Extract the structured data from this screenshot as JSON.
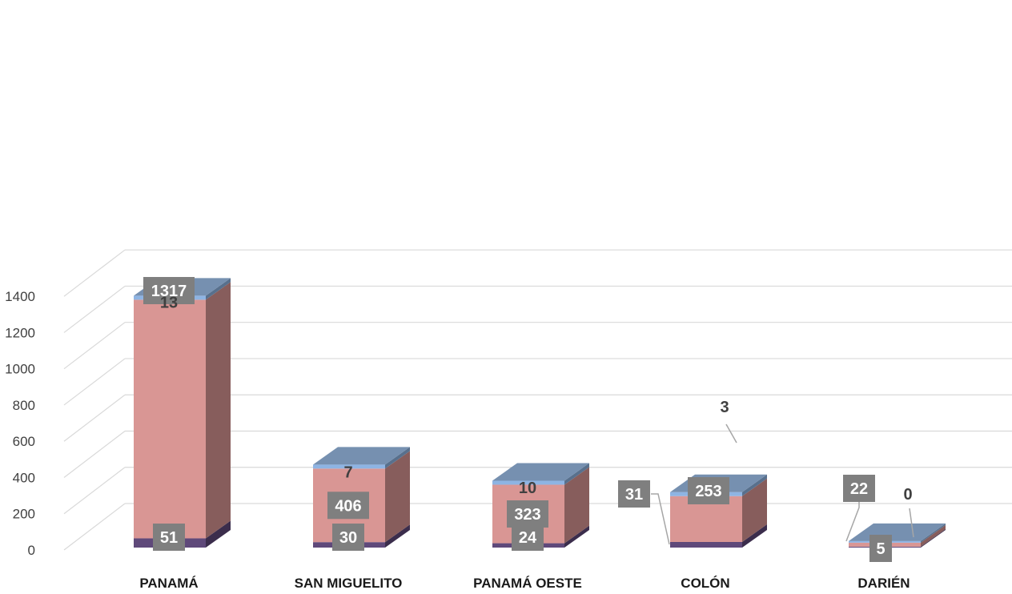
{
  "chart_data": {
    "type": "bar",
    "stacked": true,
    "three_d": true,
    "categories": [
      "PANAMÁ",
      "SAN MIGUELITO",
      "PANAMÁ OESTE",
      "COLÓN",
      "DARIÉN"
    ],
    "series": [
      {
        "values": [
          51,
          30,
          24,
          31,
          5
        ],
        "color": "#5f497a"
      },
      {
        "values": [
          1317,
          406,
          323,
          253,
          22
        ],
        "color": "#d99694"
      },
      {
        "values": [
          13,
          7,
          10,
          3,
          0
        ],
        "color": "#8eb4e3"
      }
    ],
    "ylim": [
      0,
      1400
    ],
    "y_ticks": [
      0,
      200,
      400,
      600,
      800,
      1000,
      1200,
      1400
    ],
    "grid": true,
    "legend": "none",
    "label_box_color": "#7f7f7f"
  }
}
